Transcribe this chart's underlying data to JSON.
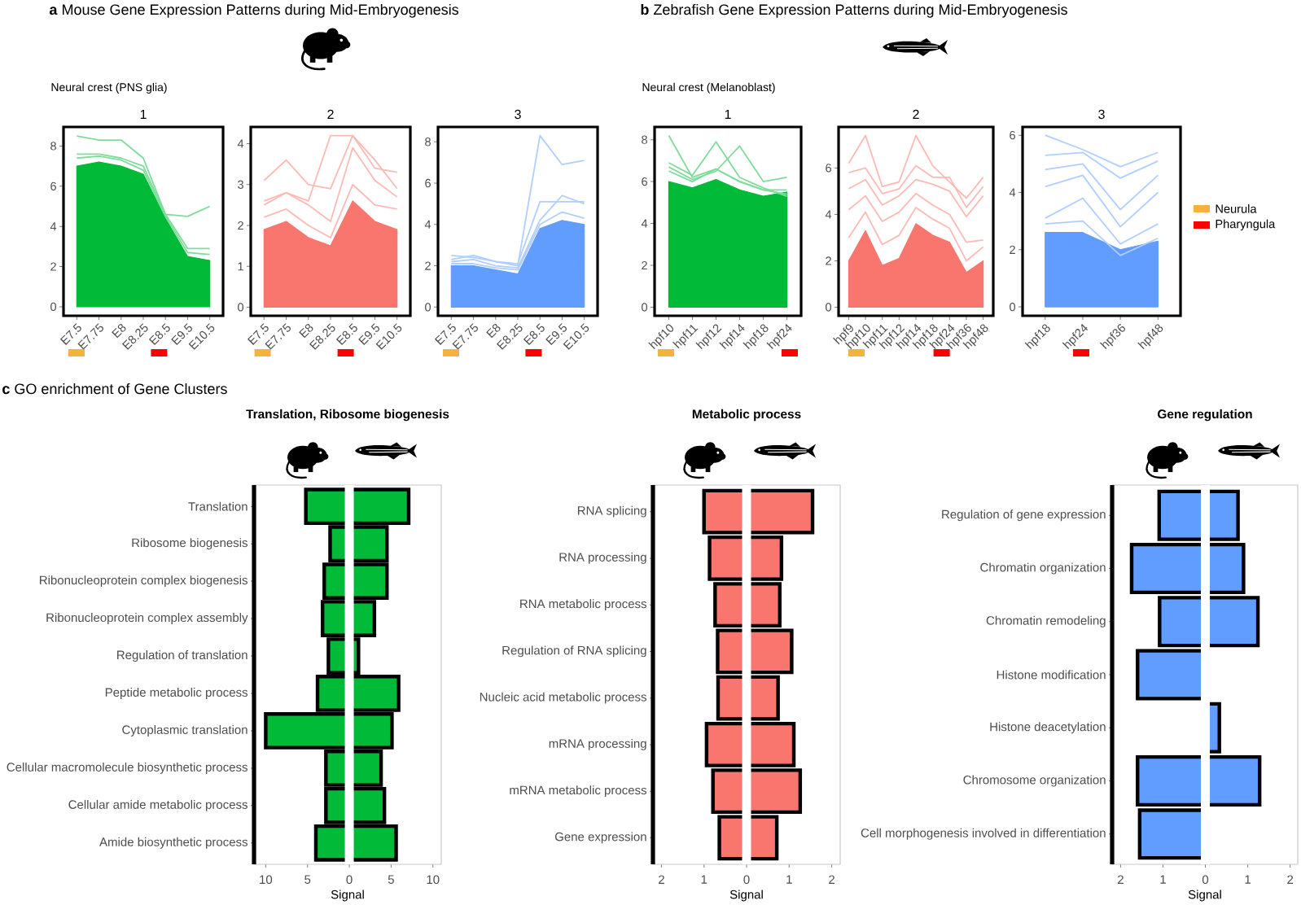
{
  "chart_data": [
    {
      "type": "line",
      "title": "1",
      "annotations": [
        "**a** Mouse Gene Expression Patterns during Mid-Embryogenesis",
        "Neural crest (PNS glia)"
      ],
      "categories": [
        "E7.5",
        "E7.75",
        "E8",
        "E8.25",
        "E8.5",
        "E9.5",
        "E10.5"
      ],
      "ylim": [
        -0.45,
        8.95
      ],
      "yticks": [
        0,
        2,
        4,
        6,
        8
      ],
      "series": [
        {
          "type": "area",
          "color": "#00ba38",
          "values": [
            7.0,
            7.2,
            7.0,
            6.6,
            4.4,
            2.5,
            2.3
          ]
        },
        {
          "color": "#80dc9c",
          "values": [
            8.5,
            8.3,
            8.3,
            7.4,
            4.6,
            4.5,
            5.0
          ]
        },
        {
          "color": "#80dc9c",
          "values": [
            7.6,
            7.6,
            7.4,
            7.0,
            4.6,
            2.9,
            2.9
          ]
        },
        {
          "color": "#80dc9c",
          "values": [
            7.4,
            7.5,
            7.3,
            6.8,
            4.5,
            2.7,
            2.6
          ]
        }
      ]
    },
    {
      "type": "line",
      "title": "2",
      "categories": [
        "E7.5",
        "E7.75",
        "E8",
        "E8.25",
        "E8.5",
        "E9.5",
        "E10.5"
      ],
      "ylim": [
        -0.21,
        4.41
      ],
      "yticks": [
        0,
        1,
        2,
        3,
        4
      ],
      "series": [
        {
          "type": "area",
          "color": "#f8766d",
          "values": [
            1.9,
            2.1,
            1.7,
            1.5,
            2.6,
            2.1,
            1.9
          ]
        },
        {
          "color": "#fbbab6",
          "values": [
            3.1,
            3.6,
            3.0,
            2.9,
            4.2,
            3.4,
            3.3
          ]
        },
        {
          "color": "#fbbab6",
          "values": [
            2.6,
            2.8,
            2.6,
            4.2,
            4.2,
            3.6,
            2.9
          ]
        },
        {
          "color": "#fbbab6",
          "values": [
            2.5,
            2.8,
            2.5,
            2.1,
            3.9,
            3.1,
            2.7
          ]
        },
        {
          "color": "#fbbab6",
          "values": [
            2.2,
            2.4,
            2.0,
            1.7,
            3.0,
            2.5,
            2.4
          ]
        }
      ]
    },
    {
      "type": "line",
      "title": "3",
      "categories": [
        "E7.5",
        "E7.75",
        "E8",
        "E8.25",
        "E8.5",
        "E9.5",
        "E10.5"
      ],
      "ylim": [
        -0.42,
        8.72
      ],
      "yticks": [
        0,
        2,
        4,
        6,
        8
      ],
      "series": [
        {
          "type": "area",
          "color": "#619cff",
          "values": [
            2.0,
            2.0,
            1.8,
            1.6,
            3.8,
            4.2,
            4.0
          ]
        },
        {
          "color": "#b0ceff",
          "values": [
            2.3,
            2.5,
            2.2,
            2.0,
            8.3,
            6.9,
            7.1
          ]
        },
        {
          "color": "#b0ceff",
          "values": [
            2.5,
            2.4,
            2.2,
            2.1,
            5.1,
            5.1,
            5.1
          ]
        },
        {
          "color": "#b0ceff",
          "values": [
            2.2,
            2.3,
            2.0,
            1.9,
            4.2,
            5.4,
            5.0
          ]
        },
        {
          "color": "#b0ceff",
          "values": [
            2.1,
            2.1,
            1.9,
            1.8,
            4.0,
            4.6,
            4.3
          ]
        }
      ]
    },
    {
      "type": "line",
      "title": "1",
      "annotations": [
        "**b** Zebrafish Gene Expression Patterns during Mid-Embryogenesis",
        "Neural crest (Melanoblast)"
      ],
      "categories": [
        "hpf10",
        "hpf11",
        "hpf12",
        "hpf14",
        "hpf18",
        "hpf24"
      ],
      "ylim": [
        -0.41,
        8.61
      ],
      "yticks": [
        0,
        2,
        4,
        6,
        8
      ],
      "series": [
        {
          "type": "area",
          "color": "#00ba38",
          "values": [
            6.0,
            5.7,
            6.1,
            5.6,
            5.3,
            5.5
          ]
        },
        {
          "color": "#80dc9c",
          "values": [
            8.2,
            6.2,
            6.6,
            6.0,
            5.6,
            5.4
          ]
        },
        {
          "color": "#80dc9c",
          "values": [
            6.9,
            6.3,
            7.9,
            6.2,
            5.7,
            5.3
          ]
        },
        {
          "color": "#80dc9c",
          "values": [
            6.7,
            6.1,
            6.5,
            7.7,
            6.0,
            6.2
          ]
        },
        {
          "color": "#80dc9c",
          "values": [
            6.5,
            6.0,
            6.6,
            6.0,
            5.6,
            5.6
          ]
        }
      ]
    },
    {
      "type": "line",
      "title": "2",
      "categories": [
        "hpf9",
        "hpf10",
        "hpf11",
        "hpf12",
        "hpf14",
        "hpf18",
        "hpf24",
        "hpf36",
        "hpf48"
      ],
      "ylim": [
        -0.37,
        7.77
      ],
      "yticks": [
        0,
        2,
        4,
        6
      ],
      "series": [
        {
          "type": "area",
          "color": "#f8766d",
          "values": [
            2.0,
            3.3,
            1.8,
            2.1,
            3.6,
            3.1,
            2.8,
            1.5,
            2.0
          ]
        },
        {
          "color": "#fbbab6",
          "values": [
            6.2,
            7.4,
            5.2,
            5.4,
            7.4,
            6.1,
            5.4,
            4.7,
            5.6
          ]
        },
        {
          "color": "#fbbab6",
          "values": [
            5.8,
            6.0,
            4.9,
            5.1,
            6.1,
            5.6,
            5.6,
            4.3,
            5.2
          ]
        },
        {
          "color": "#fbbab6",
          "values": [
            5.1,
            5.5,
            4.4,
            4.8,
            5.5,
            5.3,
            5.0,
            3.9,
            4.8
          ]
        },
        {
          "color": "#fbbab6",
          "values": [
            4.2,
            4.8,
            3.7,
            4.1,
            4.9,
            4.4,
            4.0,
            2.8,
            2.9
          ]
        },
        {
          "color": "#fbbab6",
          "values": [
            3.0,
            4.1,
            2.7,
            3.1,
            4.3,
            3.8,
            3.4,
            2.0,
            2.6
          ]
        }
      ]
    },
    {
      "type": "line",
      "title": "3",
      "categories": [
        "hpf18",
        "hpf24",
        "hpf36",
        "hpf48"
      ],
      "ylim": [
        -0.31,
        6.29
      ],
      "yticks": [
        0,
        2,
        4,
        6
      ],
      "series": [
        {
          "type": "area",
          "color": "#619cff",
          "values": [
            2.6,
            2.6,
            2.0,
            2.3
          ]
        },
        {
          "color": "#b0ceff",
          "values": [
            6.0,
            5.5,
            4.9,
            5.4
          ]
        },
        {
          "color": "#b0ceff",
          "values": [
            5.3,
            5.4,
            4.5,
            5.1
          ]
        },
        {
          "color": "#b0ceff",
          "values": [
            4.8,
            5.0,
            3.4,
            4.6
          ]
        },
        {
          "color": "#b0ceff",
          "values": [
            4.2,
            4.6,
            2.8,
            4.0
          ]
        },
        {
          "color": "#b0ceff",
          "values": [
            3.1,
            3.8,
            2.2,
            2.9
          ]
        },
        {
          "color": "#b0ceff",
          "values": [
            2.9,
            3.0,
            1.8,
            2.4
          ]
        }
      ]
    },
    {
      "type": "other",
      "categories": [
        "Neurula",
        "Pharyngula"
      ],
      "colors": [
        "#f6b13f",
        "#ff0000"
      ]
    },
    {
      "type": "bar",
      "orientation": "horizontal",
      "stacked": true,
      "title": "Translation, Ribosome biogenesis",
      "xlabel": "Signal",
      "annotations": [
        "**c** GO enrichment of Gene Clusters"
      ],
      "categories": [
        "Translation",
        "Ribosome biogenesis",
        "Ribonucleoprotein complex biogenesis",
        "Ribonucleoprotein complex assembly",
        "Regulation of translation",
        "Peptide metabolic process",
        "Cytoplasmic translation",
        "Cellular macromolecule biosynthetic process",
        "Cellular amide metabolic process",
        "Amide biosynthetic process"
      ],
      "series": [
        {
          "color": "#00ba38",
          "values": [
            -5.2,
            -2.3,
            -3.0,
            -3.2,
            -2.5,
            -3.8,
            -10.0,
            -2.8,
            -2.8,
            -4.0
          ]
        },
        {
          "color": "#00ba38",
          "values": [
            7.1,
            4.5,
            4.5,
            3.0,
            1.1,
            5.9,
            5.1,
            3.8,
            4.2,
            5.6
          ]
        }
      ],
      "xlim": [
        -11.4,
        11.0
      ],
      "xticks": [
        {
          "value": -10,
          "label": "10"
        },
        {
          "value": -5,
          "label": "5"
        },
        0,
        5,
        10
      ],
      "ref_lines": [
        {
          "axis": "x",
          "value": 0,
          "color": "#ffffff"
        }
      ]
    },
    {
      "type": "bar",
      "orientation": "horizontal",
      "stacked": true,
      "title": "Metabolic process",
      "xlabel": "Signal",
      "categories": [
        "RNA splicing",
        "RNA processing",
        "RNA metabolic process",
        "Regulation of RNA splicing",
        "Nucleic acid metabolic process",
        "mRNA processing",
        "mRNA metabolic process",
        "Gene expression"
      ],
      "series": [
        {
          "color": "#f8766d",
          "values": [
            -1.0,
            -0.87,
            -0.74,
            -0.68,
            -0.67,
            -0.94,
            -0.79,
            -0.64
          ]
        },
        {
          "color": "#f8766d",
          "values": [
            1.55,
            0.82,
            0.78,
            1.06,
            0.74,
            1.11,
            1.26,
            0.71
          ]
        }
      ],
      "xlim": [
        -2.2,
        2.2
      ],
      "xticks": [
        {
          "value": -2,
          "label": "2"
        },
        {
          "value": -1,
          "label": "1"
        },
        0,
        1,
        2
      ],
      "ref_lines": [
        {
          "axis": "x",
          "value": 0,
          "color": "#ffffff"
        }
      ]
    },
    {
      "type": "bar",
      "orientation": "horizontal",
      "stacked": true,
      "title": "Gene regulation",
      "xlabel": "Signal",
      "categories": [
        "Regulation of gene expression",
        "Chromatin organization",
        "Chromatin remodeling",
        "Histone modification",
        "Histone deacetylation",
        "Chromosome organization",
        "Cell morphogenesis involved in differentiation"
      ],
      "series": [
        {
          "color": "#619cff",
          "values": [
            -1.09,
            -1.74,
            -1.08,
            -1.6,
            null,
            -1.6,
            -1.55
          ]
        },
        {
          "color": "#619cff",
          "values": [
            0.77,
            0.9,
            1.24,
            null,
            0.33,
            1.28,
            null
          ]
        }
      ],
      "xlim": [
        -2.2,
        2.18
      ],
      "xticks": [
        {
          "value": -2,
          "label": "2"
        },
        {
          "value": -1,
          "label": "1"
        },
        0,
        1,
        2
      ],
      "ref_lines": [
        {
          "axis": "x",
          "value": 0,
          "color": "#ffffff"
        }
      ]
    }
  ]
}
